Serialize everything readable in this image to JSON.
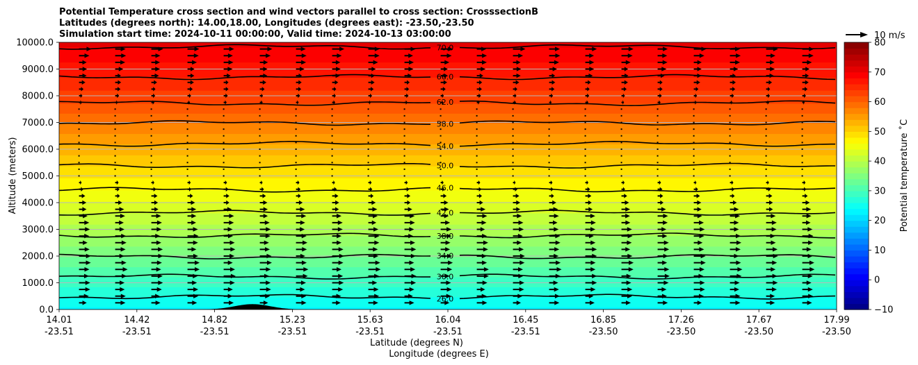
{
  "chart_data": {
    "type": "heatmap",
    "subtype": "cross-section with contours and wind vectors",
    "title_lines": [
      "Potential Temperature cross section and wind vectors parallel to cross section: CrosssectionB",
      "Latitudes (degrees north): 14.00,18.00, Longitudes (degrees east): -23.50,-23.50",
      "Simulation start time: 2024-10-11 00:00:00, Valid time: 2024-10-13 03:00:00"
    ],
    "xlabel_lines": [
      "Latitude (degrees N)",
      "Longitude (degrees E)"
    ],
    "ylabel": "Altitude (meters)",
    "x_ticks": [
      {
        "lat": "14.01",
        "lon": "-23.51"
      },
      {
        "lat": "14.42",
        "lon": "-23.51"
      },
      {
        "lat": "14.82",
        "lon": "-23.51"
      },
      {
        "lat": "15.23",
        "lon": "-23.51"
      },
      {
        "lat": "15.63",
        "lon": "-23.51"
      },
      {
        "lat": "16.04",
        "lon": "-23.51"
      },
      {
        "lat": "16.45",
        "lon": "-23.51"
      },
      {
        "lat": "16.85",
        "lon": "-23.50"
      },
      {
        "lat": "17.26",
        "lon": "-23.50"
      },
      {
        "lat": "17.67",
        "lon": "-23.50"
      },
      {
        "lat": "17.99",
        "lon": "-23.50"
      }
    ],
    "x_range": [
      14.01,
      17.99
    ],
    "y_ticks": [
      "0.0",
      "1000.0",
      "2000.0",
      "3000.0",
      "4000.0",
      "5000.0",
      "6000.0",
      "7000.0",
      "8000.0",
      "9000.0",
      "10000.0"
    ],
    "y_tick_values": [
      0,
      1000,
      2000,
      3000,
      4000,
      5000,
      6000,
      7000,
      8000,
      9000,
      10000
    ],
    "ylim": [
      0,
      10000
    ],
    "grid": "horizontal",
    "colorbar": {
      "label": "Potential temperature ˚C",
      "ticks": [
        "−10",
        "0",
        "10",
        "20",
        "30",
        "40",
        "50",
        "60",
        "70",
        "80"
      ],
      "tick_values": [
        -10,
        0,
        10,
        20,
        30,
        40,
        50,
        60,
        70,
        80
      ],
      "range": [
        -10,
        80
      ],
      "colormap": "jet",
      "placement": "right"
    },
    "contours": [
      {
        "level": 26,
        "label": "26.0",
        "altitude": 480
      },
      {
        "level": 30,
        "label": "30.0",
        "altitude": 1230
      },
      {
        "level": 34,
        "label": "34.0",
        "altitude": 1980
      },
      {
        "level": 38,
        "label": "38.0",
        "altitude": 2770
      },
      {
        "level": 42,
        "label": "42.0",
        "altitude": 3620
      },
      {
        "level": 46,
        "label": "46.0",
        "altitude": 4480
      },
      {
        "level": 50,
        "label": "50.0",
        "altitude": 5380
      },
      {
        "level": 54,
        "label": "54.0",
        "altitude": 6200
      },
      {
        "level": 58,
        "label": "58.0",
        "altitude": 6980
      },
      {
        "level": 62,
        "label": "62.0",
        "altitude": 7720
      },
      {
        "level": 66,
        "label": "66.0",
        "altitude": 8700
      },
      {
        "level": 70,
        "label": "70.0",
        "altitude": 9830
      }
    ],
    "vector_key": {
      "label": "10 m/s",
      "speed": 10,
      "placement": "top-right"
    },
    "vector_levels": [
      250,
      500,
      750,
      1000,
      1250,
      1500,
      1750,
      2000,
      2250,
      2500,
      2750,
      3000,
      3250,
      3500,
      3750,
      4000,
      4250,
      4500,
      4750,
      5000,
      5250,
      5500,
      5750,
      6000,
      6250,
      6500,
      6750,
      7000,
      7250,
      7500,
      7750,
      8000,
      8250,
      8500,
      8750,
      9000,
      9250,
      9500,
      9750
    ],
    "vector_speed_profile": [
      {
        "altitude": 250,
        "u": 5
      },
      {
        "altitude": 1500,
        "u": 6
      },
      {
        "altitude": 3500,
        "u": 5
      },
      {
        "altitude": 5000,
        "u": 1
      },
      {
        "altitude": 6500,
        "u": -1
      },
      {
        "altitude": 8000,
        "u": 2
      },
      {
        "altitude": 9750,
        "u": 6
      }
    ],
    "terrain": {
      "center_lat": 15.0,
      "peak_altitude": 200,
      "halfwidth_deg": 0.13
    }
  }
}
